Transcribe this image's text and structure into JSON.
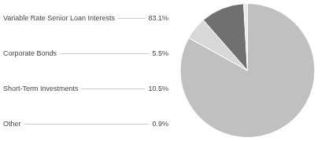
{
  "chart_data": {
    "type": "pie",
    "categories": [
      "Variable Rate Senior Loan Interests",
      "Corporate Bonds",
      "Short-Term Investments",
      "Other"
    ],
    "values": [
      83.1,
      5.5,
      10.5,
      0.9
    ],
    "value_labels": [
      "83.1%",
      "5.5%",
      "10.5%",
      "0.9%"
    ],
    "colors": [
      "#c0c0c0",
      "#d8d8d8",
      "#707070",
      "#e8e8e8"
    ],
    "data_labels": true,
    "legend": false
  }
}
